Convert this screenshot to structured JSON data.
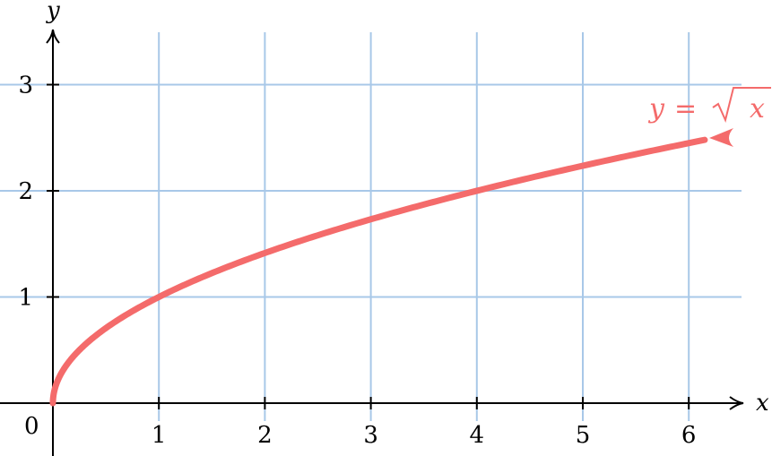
{
  "chart_data": {
    "type": "line",
    "xlabel": "x",
    "ylabel": "y",
    "origin_label": "0",
    "xlim": [
      0,
      6.5
    ],
    "ylim": [
      0,
      3.5
    ],
    "x_ticks": [
      1,
      2,
      3,
      4,
      5,
      6
    ],
    "y_ticks": [
      1,
      2,
      3
    ],
    "x_tick_labels": [
      "1",
      "2",
      "3",
      "4",
      "5",
      "6"
    ],
    "y_tick_labels": [
      "1",
      "2",
      "3"
    ],
    "grid": true,
    "series": [
      {
        "name": "y = √x",
        "label_parts": {
          "lhs": "y",
          "eq": "=",
          "radicand": "x"
        },
        "function": "sqrt",
        "x": [
          0,
          0.01,
          0.05,
          0.1,
          0.25,
          0.5,
          1,
          1.5,
          2,
          2.5,
          3,
          3.5,
          4,
          4.5,
          5,
          5.5,
          6,
          6.15
        ],
        "y": [
          0,
          0.1,
          0.224,
          0.316,
          0.5,
          0.707,
          1,
          1.225,
          1.414,
          1.581,
          1.732,
          1.871,
          2,
          2.121,
          2.236,
          2.345,
          2.449,
          2.48
        ],
        "color": "#f46b6b"
      }
    ],
    "colors": {
      "grid": "#a8c8e8",
      "axis": "#000000",
      "curve": "#f46b6b"
    }
  }
}
